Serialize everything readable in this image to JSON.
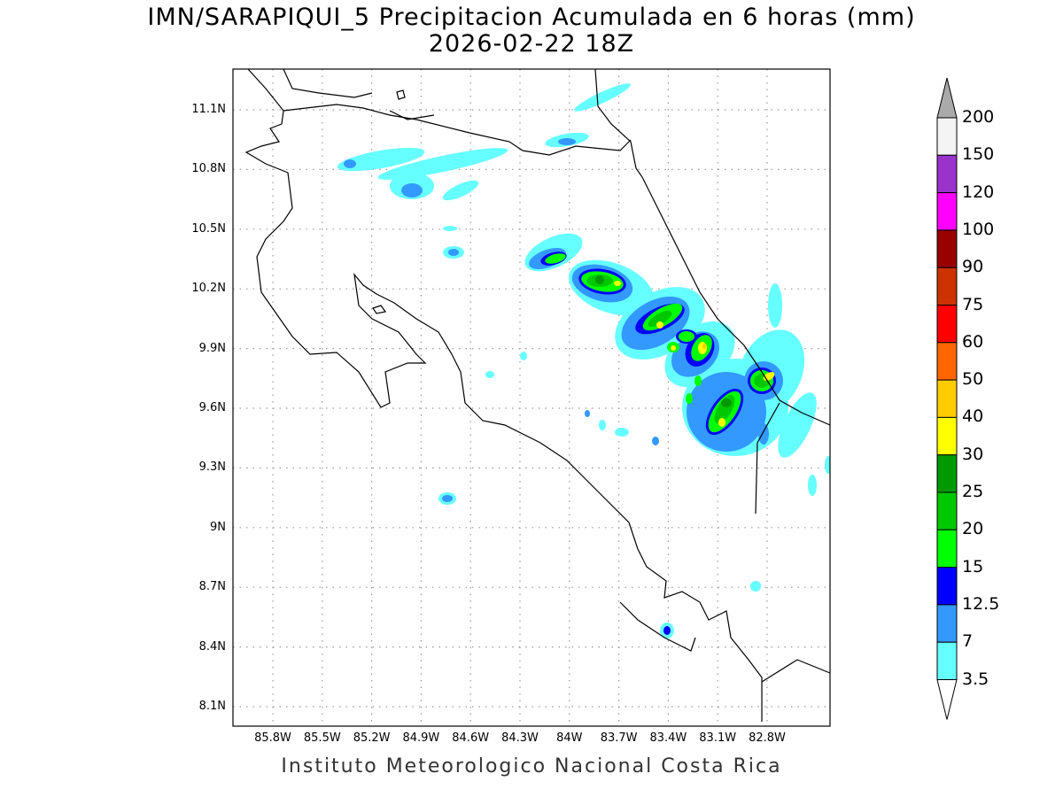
{
  "title": "IMN/SARAPIQUI_5 Precipitacion Acumulada en 6 horas (mm)",
  "subtitle": "2026-02-22 18Z",
  "footer": "Instituto Meteorologico Nacional Costa Rica",
  "lat_ticks": [
    "11.1N",
    "10.8N",
    "10.5N",
    "10.2N",
    "9.9N",
    "9.6N",
    "9.3N",
    "9N",
    "8.7N",
    "8.4N",
    "8.1N"
  ],
  "lon_ticks": [
    "85.8W",
    "85.5W",
    "85.2W",
    "84.9W",
    "84.6W",
    "84.3W",
    "84W",
    "83.7W",
    "83.4W",
    "83.1W",
    "82.8W"
  ],
  "colorbar": {
    "labels": [
      "200",
      "150",
      "120",
      "100",
      "90",
      "75",
      "60",
      "50",
      "40",
      "30",
      "25",
      "20",
      "15",
      "12.5",
      "7",
      "3.5"
    ],
    "colors": [
      "#f4f4f4",
      "#9933cc",
      "#ff00ff",
      "#990000",
      "#cc3300",
      "#ff0000",
      "#ff6600",
      "#ffcc00",
      "#ffff00",
      "#009900",
      "#00c800",
      "#00ff00",
      "#0000ff",
      "#3399ff",
      "#66ffff"
    ],
    "over_color": "#aaaaaa"
  }
}
